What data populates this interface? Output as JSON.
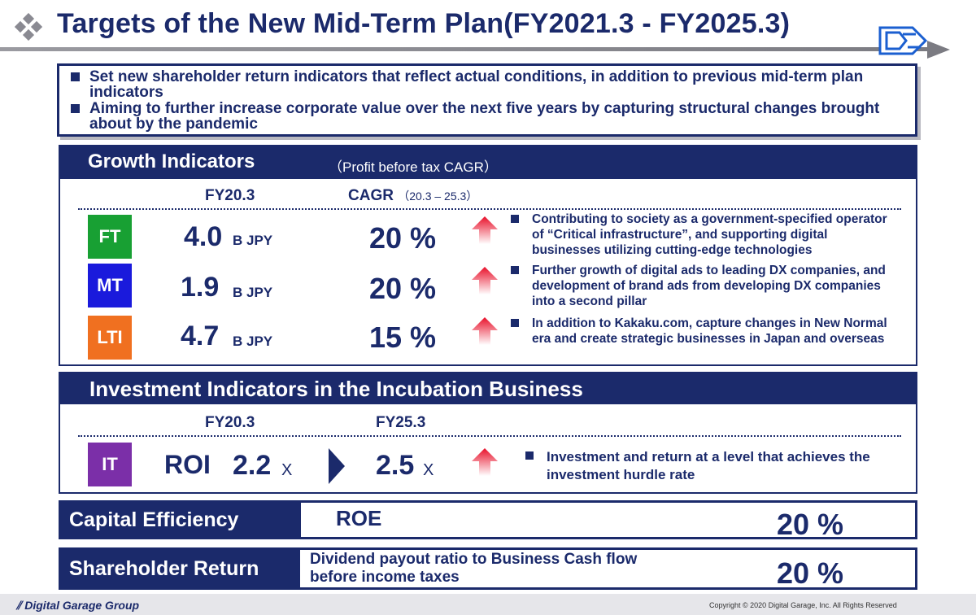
{
  "header": {
    "title": "Targets of the New Mid-Term Plan(FY2021.3 - FY2025.3)",
    "logo_icon": "dg-logo-icon",
    "accent_color": "#1b2a6b"
  },
  "summary": {
    "bullets": [
      "Set new shareholder return indicators that reflect actual conditions, in addition to previous mid-term plan indicators",
      "Aiming to further increase corporate value over the next five years by capturing structural changes brought about by the pandemic"
    ]
  },
  "growth": {
    "title": "Growth Indicators",
    "subtitle": "（Profit before tax CAGR）",
    "col_fy": "FY20.3",
    "col_cagr": "CAGR",
    "col_cagr_period": "（20.3 – 25.3）",
    "rows": [
      {
        "segment": "FT",
        "color": "#18a033",
        "value": "4.0",
        "unit": "B JPY",
        "cagr": "20 %",
        "desc": "Contributing to society as a government-specified operator of “Critical infrastructure”, and supporting digital businesses utilizing cutting-edge technologies"
      },
      {
        "segment": "MT",
        "color": "#1a1adc",
        "value": "1.9",
        "unit": "B JPY",
        "cagr": "20 %",
        "desc": "Further growth of digital ads to leading DX companies, and development of brand ads from developing DX companies into a second pillar"
      },
      {
        "segment": "LTI",
        "color": "#f07020",
        "value": "4.7",
        "unit": "B JPY",
        "cagr": "15 %",
        "desc": "In addition to Kakaku.com, capture changes in New Normal era and create strategic businesses in Japan and overseas"
      }
    ]
  },
  "investment": {
    "title": "Investment Indicators in the Incubation Business",
    "col_fy20": "FY20.3",
    "col_fy25": "FY25.3",
    "segment": "IT",
    "segment_color": "#7b2fa8",
    "roi_label": "ROI",
    "value_fy20": "2.2",
    "value_fy25": "2.5",
    "unit": "X",
    "desc": "Investment and return at a level that achieves the investment hurdle rate"
  },
  "capital": {
    "label": "Capital Efficiency",
    "metric": "ROE",
    "value": "20 %"
  },
  "shareholder": {
    "label": "Shareholder Return",
    "metric_line1": "Dividend payout ratio to Business Cash flow",
    "metric_line2": "before income taxes",
    "value": "20 %"
  },
  "footer": {
    "brand": "Digital Garage Group",
    "copyright": "Copyright © 2020 Digital Garage, Inc. All Rights Reserved"
  }
}
